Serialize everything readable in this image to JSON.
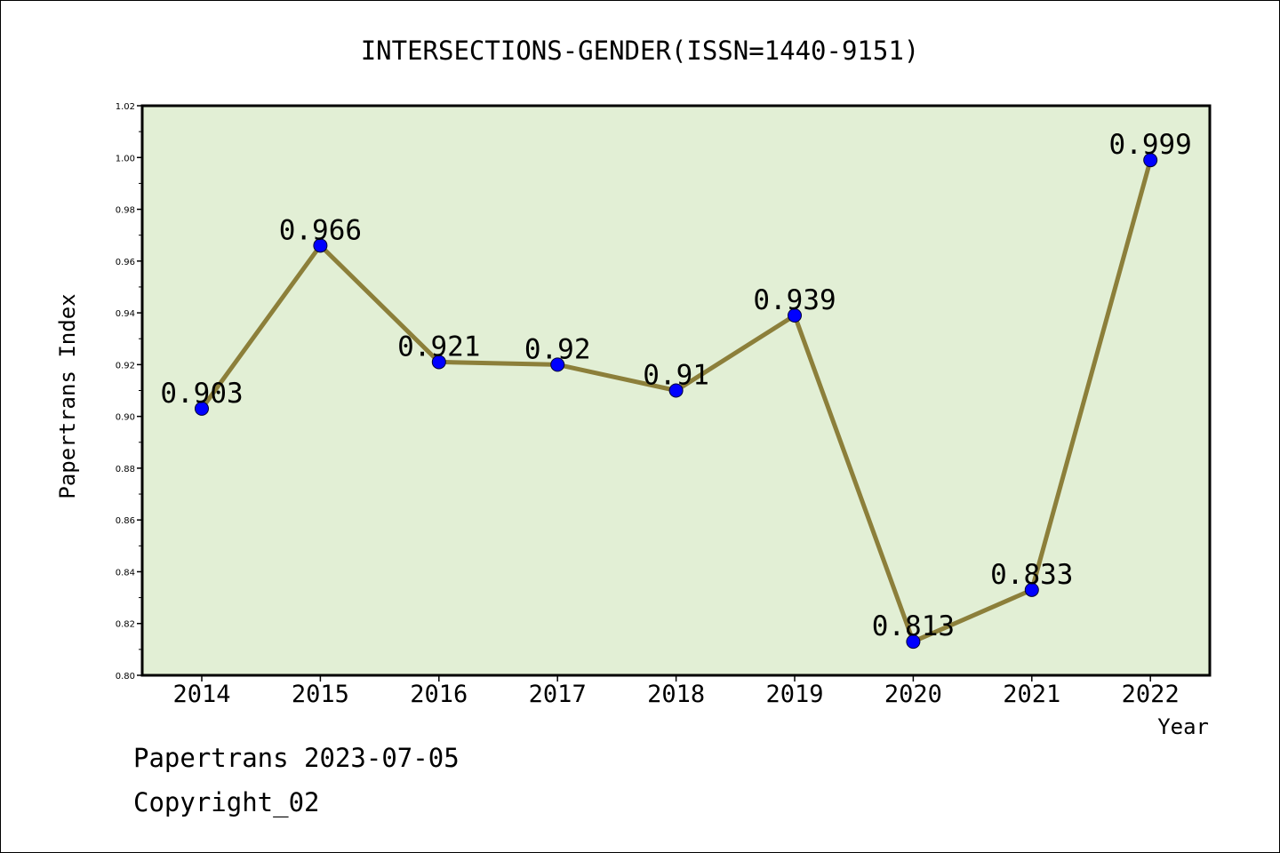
{
  "chart_data": {
    "type": "line",
    "title": "INTERSECTIONS-GENDER(ISSN=1440-9151)",
    "xlabel": "Year",
    "ylabel": "Papertrans Index",
    "categories": [
      "2014",
      "2015",
      "2016",
      "2017",
      "2018",
      "2019",
      "2020",
      "2021",
      "2022"
    ],
    "series": [
      {
        "values": [
          0.903,
          0.966,
          0.921,
          0.92,
          0.91,
          0.939,
          0.813,
          0.833,
          0.999
        ]
      }
    ],
    "data_labels": [
      "0.903",
      "0.966",
      "0.921",
      "0.92",
      "0.91",
      "0.939",
      "0.813",
      "0.833",
      "0.999"
    ],
    "ylim": [
      0.8,
      1.02
    ],
    "yticks": [
      "0.80",
      "0.82",
      "0.84",
      "0.86",
      "0.88",
      "0.90",
      "0.92",
      "0.94",
      "0.96",
      "0.98",
      "1.00",
      "1.02"
    ],
    "grid": false,
    "colors": {
      "plot_background": "#e2efd5",
      "line": "#8c7f3a",
      "marker": "#0000ff"
    }
  },
  "footer": {
    "line1": "Papertrans 2023-07-05",
    "line2": "Copyright_02"
  }
}
